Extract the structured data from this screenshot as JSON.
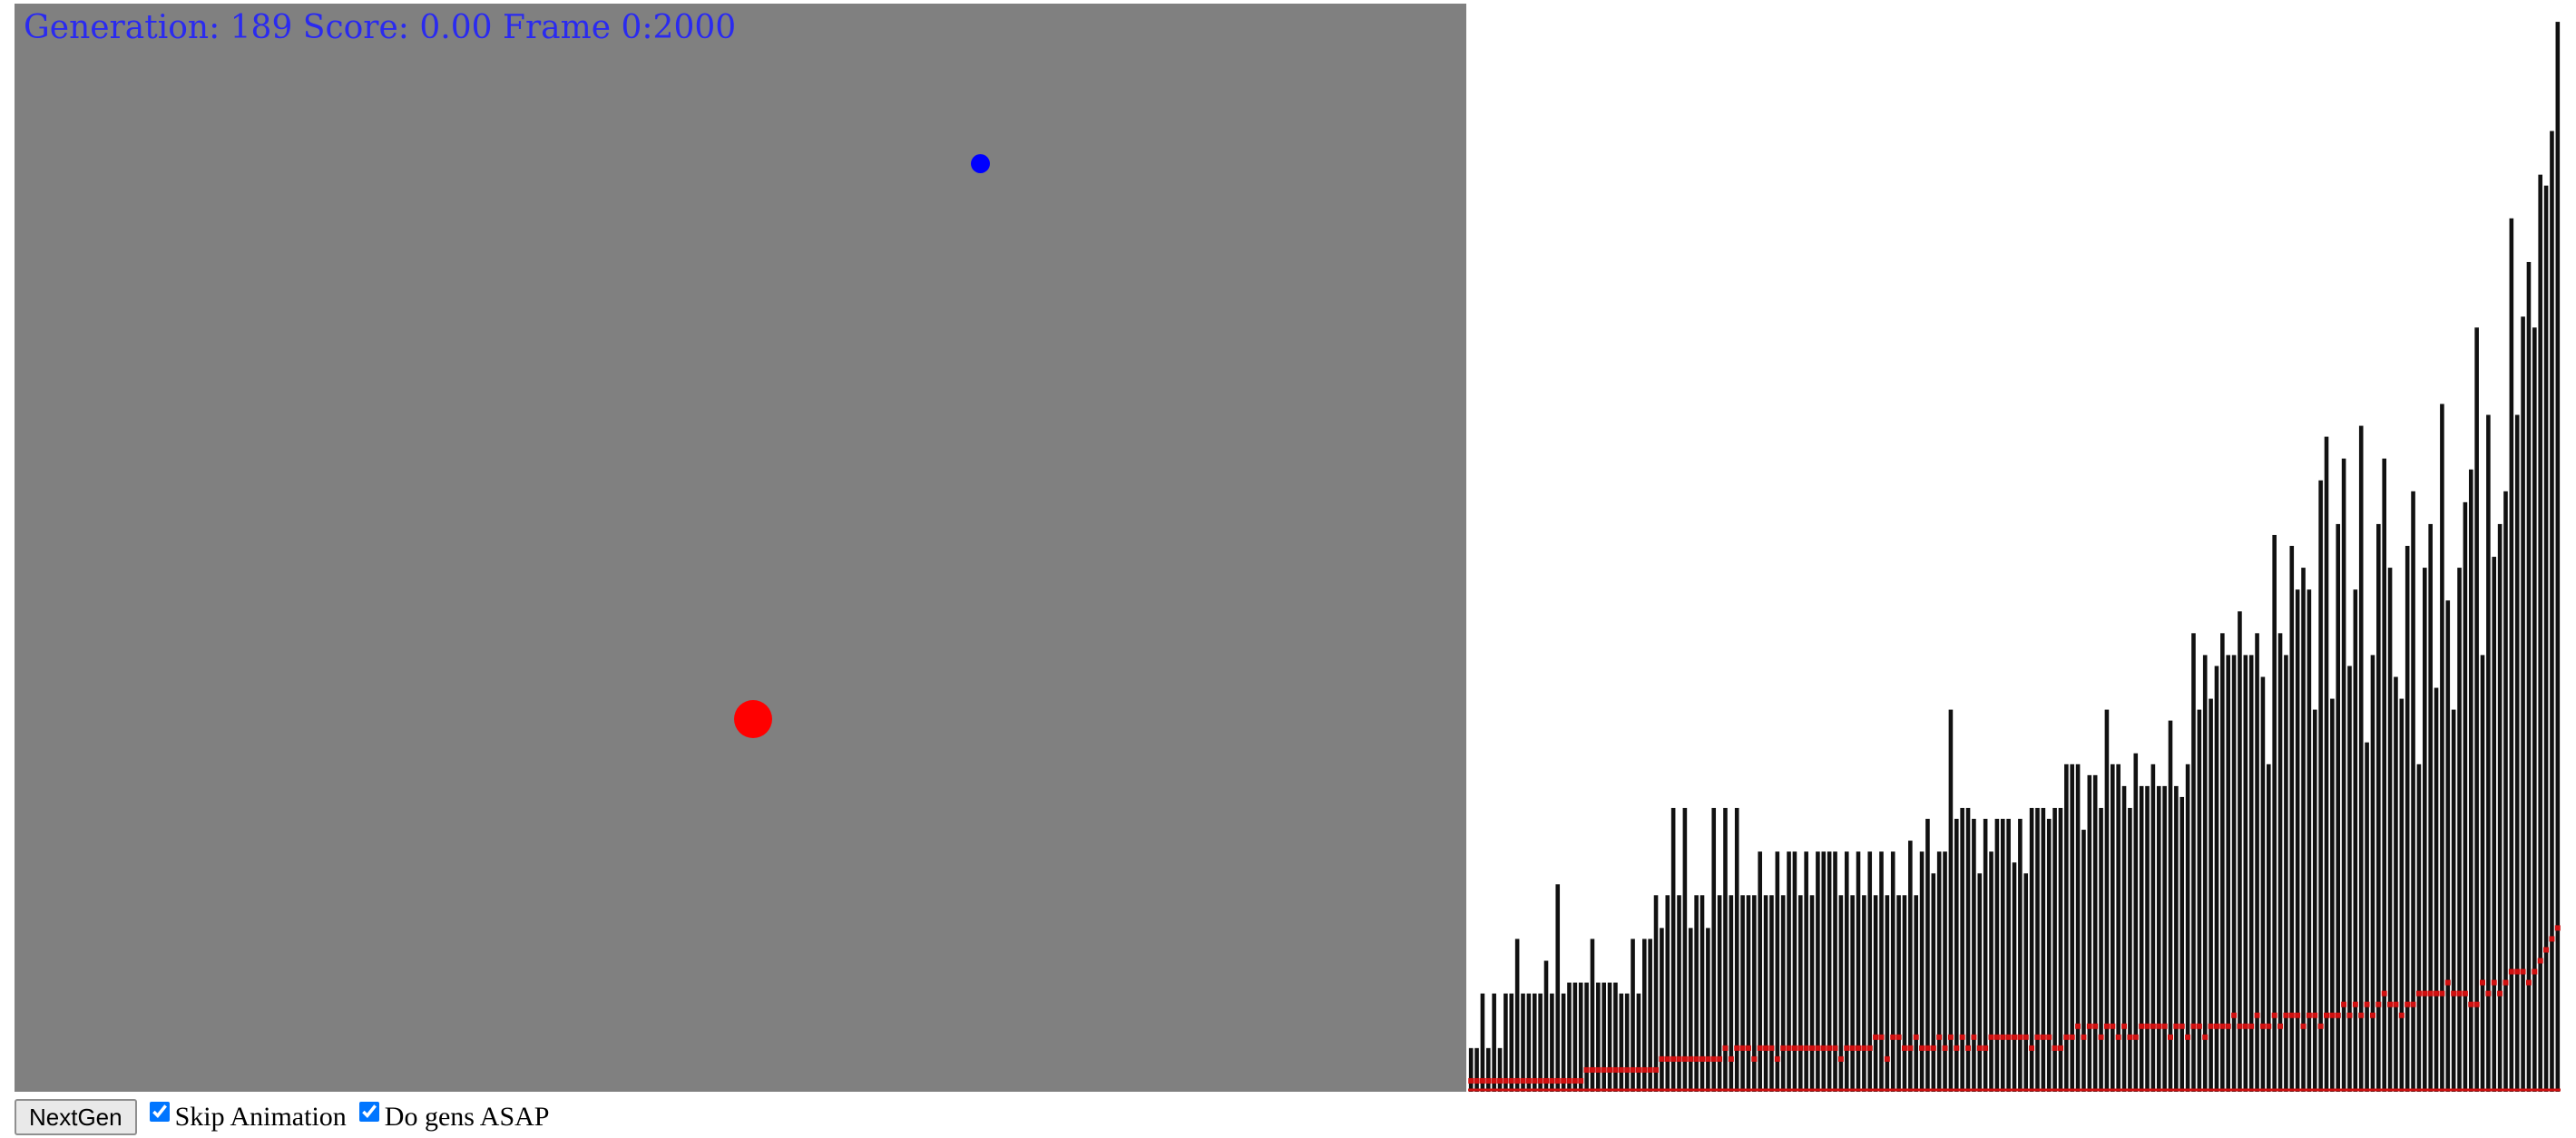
{
  "status": {
    "text": "Generation: 189 Score: 0.00 Frame 0:2000"
  },
  "colors": {
    "canvas_bg": "#808080",
    "status_text": "#2a2af0",
    "target_dot": "#0000ff",
    "agent_dot": "#ff0000",
    "bar": "#111111",
    "average_marker": "#d01010"
  },
  "controls": {
    "nextgen_label": "NextGen",
    "skip_animation_label": "Skip Animation",
    "skip_animation_checked": true,
    "do_gens_asap_label": "Do gens ASAP",
    "do_gens_asap_checked": true
  },
  "chart_data": {
    "type": "bar",
    "title": "",
    "xlabel": "",
    "ylabel": "",
    "x_range": [
      1,
      189
    ],
    "ylim": [
      0,
      100
    ],
    "grid": false,
    "series": [
      {
        "values": [
          4,
          4,
          9,
          4,
          9,
          4,
          9,
          9,
          14,
          9,
          9,
          9,
          9,
          12,
          9,
          19,
          9,
          10,
          10,
          10,
          10,
          14,
          10,
          10,
          10,
          10,
          9,
          9,
          14,
          9,
          14,
          14,
          18,
          15,
          18,
          26,
          18,
          26,
          15,
          18,
          18,
          15,
          26,
          18,
          26,
          18,
          26,
          18,
          18,
          18,
          22,
          18,
          18,
          22,
          18,
          22,
          22,
          18,
          22,
          18,
          22,
          22,
          22,
          22,
          18,
          22,
          18,
          22,
          18,
          22,
          18,
          22,
          18,
          22,
          18,
          18,
          23,
          18,
          22,
          25,
          20,
          22,
          22,
          35,
          25,
          26,
          26,
          25,
          20,
          25,
          22,
          25,
          25,
          25,
          21,
          25,
          20,
          26,
          26,
          26,
          25,
          26,
          26,
          30,
          30,
          30,
          24,
          29,
          29,
          26,
          35,
          30,
          30,
          28,
          26,
          31,
          28,
          28,
          30,
          28,
          28,
          34,
          28,
          27,
          30,
          42,
          35,
          40,
          36,
          39,
          42,
          40,
          40,
          44,
          40,
          40,
          42,
          38,
          30,
          51,
          42,
          40,
          50,
          46,
          48,
          46,
          35,
          56,
          60,
          36,
          52,
          58,
          39,
          46,
          61,
          32,
          40,
          52,
          58,
          48,
          38,
          36,
          50,
          55,
          30,
          48,
          52,
          37,
          63,
          45,
          35,
          48,
          54,
          57,
          70,
          40,
          62,
          49,
          52,
          55,
          80,
          62,
          71,
          76,
          70,
          84,
          83,
          88,
          98
        ],
        "color": "#111111"
      },
      {
        "values": [
          1,
          1,
          1,
          1,
          1,
          1,
          1,
          1,
          1,
          1,
          1,
          1,
          1,
          1,
          1,
          1,
          1,
          1,
          1,
          1,
          2,
          2,
          2,
          2,
          2,
          2,
          2,
          2,
          2,
          2,
          2,
          2,
          2,
          3,
          3,
          3,
          3,
          3,
          3,
          3,
          3,
          3,
          3,
          3,
          4,
          3,
          4,
          4,
          4,
          3,
          4,
          4,
          4,
          3,
          4,
          4,
          4,
          4,
          4,
          4,
          4,
          4,
          4,
          4,
          3,
          4,
          4,
          4,
          4,
          4,
          5,
          5,
          3,
          5,
          5,
          4,
          4,
          5,
          4,
          4,
          4,
          5,
          4,
          5,
          4,
          5,
          4,
          5,
          4,
          4,
          5,
          5,
          5,
          5,
          5,
          5,
          5,
          4,
          5,
          5,
          5,
          4,
          4,
          5,
          5,
          6,
          5,
          6,
          6,
          5,
          6,
          6,
          5,
          6,
          5,
          5,
          6,
          6,
          6,
          6,
          6,
          5,
          6,
          6,
          5,
          6,
          6,
          5,
          6,
          6,
          6,
          6,
          7,
          6,
          6,
          6,
          7,
          6,
          6,
          7,
          6,
          7,
          7,
          7,
          6,
          7,
          7,
          6,
          7,
          7,
          7,
          8,
          7,
          8,
          7,
          8,
          7,
          8,
          9,
          8,
          8,
          7,
          8,
          8,
          9,
          9,
          9,
          9,
          9,
          10,
          9,
          9,
          9,
          8,
          8,
          10,
          9,
          10,
          9,
          10,
          11,
          11,
          11,
          10,
          11,
          12,
          13,
          14,
          15
        ],
        "color": "#d01010",
        "marker": "square"
      }
    ],
    "baseline_line_color": "#d01010"
  }
}
